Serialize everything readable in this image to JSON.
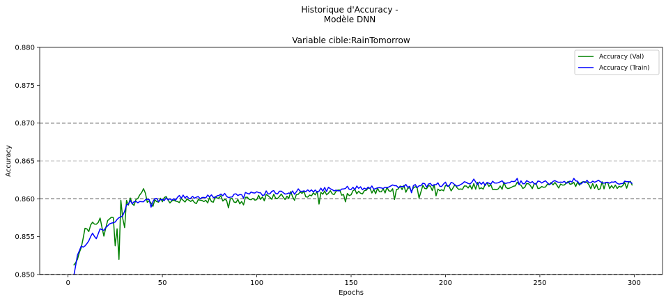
{
  "chart_data": {
    "type": "line",
    "suptitle_lines": [
      "Historique d'Accuracy -",
      "Modèle DNN"
    ],
    "title": "Variable cible:RainTomorrow",
    "xlabel": "Epochs",
    "ylabel": "Accuracy",
    "xlim": [
      -15,
      315
    ],
    "ylim": [
      0.85,
      0.88
    ],
    "xticks": [
      0,
      50,
      100,
      150,
      200,
      250,
      300
    ],
    "yticks": [
      0.85,
      0.855,
      0.86,
      0.865,
      0.87,
      0.875,
      0.88
    ],
    "ytick_labels": [
      "0.850",
      "0.855",
      "0.860",
      "0.865",
      "0.870",
      "0.875",
      "0.880"
    ],
    "reference_lines": [
      {
        "y": 0.85,
        "style": "dashed",
        "color": "#000000"
      },
      {
        "y": 0.86,
        "style": "dashed",
        "color": "#808080"
      },
      {
        "y": 0.865,
        "style": "dashed",
        "color": "#c8c8c8"
      },
      {
        "y": 0.87,
        "style": "dashed",
        "color": "#808080"
      }
    ],
    "legend_position": "top-right",
    "grid": false,
    "anchors": {
      "val": [
        [
          3,
          0.8512
        ],
        [
          5,
          0.852
        ],
        [
          7,
          0.8535
        ],
        [
          9,
          0.856
        ],
        [
          11,
          0.8558
        ],
        [
          13,
          0.857
        ],
        [
          15,
          0.8565
        ],
        [
          17,
          0.8575
        ],
        [
          19,
          0.8552
        ],
        [
          21,
          0.857
        ],
        [
          23,
          0.8575
        ],
        [
          25,
          0.8578
        ],
        [
          26,
          0.856
        ],
        [
          27,
          0.8552
        ],
        [
          28,
          0.8598
        ],
        [
          29,
          0.8575
        ],
        [
          31,
          0.8594
        ],
        [
          33,
          0.8598
        ],
        [
          35,
          0.8596
        ],
        [
          37,
          0.8598
        ],
        [
          39,
          0.8605
        ],
        [
          40,
          0.861
        ],
        [
          42,
          0.86
        ],
        [
          45,
          0.8597
        ],
        [
          50,
          0.8598
        ],
        [
          60,
          0.8597
        ],
        [
          70,
          0.8598
        ],
        [
          80,
          0.86
        ],
        [
          90,
          0.8598
        ],
        [
          100,
          0.8601
        ],
        [
          110,
          0.8603
        ],
        [
          120,
          0.8605
        ],
        [
          130,
          0.8605
        ],
        [
          140,
          0.8607
        ],
        [
          150,
          0.8609
        ],
        [
          160,
          0.861
        ],
        [
          170,
          0.8612
        ],
        [
          180,
          0.8613
        ],
        [
          190,
          0.8614
        ],
        [
          200,
          0.8615
        ],
        [
          210,
          0.8616
        ],
        [
          220,
          0.8617
        ],
        [
          230,
          0.8617
        ],
        [
          240,
          0.8617
        ],
        [
          250,
          0.8618
        ],
        [
          260,
          0.8618
        ],
        [
          270,
          0.8618
        ],
        [
          280,
          0.8618
        ],
        [
          290,
          0.8618
        ],
        [
          299,
          0.8619
        ]
      ],
      "train": [
        [
          3,
          0.8497
        ],
        [
          5,
          0.8525
        ],
        [
          7,
          0.8537
        ],
        [
          9,
          0.8537
        ],
        [
          11,
          0.8545
        ],
        [
          13,
          0.8555
        ],
        [
          15,
          0.8547
        ],
        [
          17,
          0.856
        ],
        [
          19,
          0.8558
        ],
        [
          21,
          0.8565
        ],
        [
          23,
          0.8568
        ],
        [
          25,
          0.857
        ],
        [
          27,
          0.8575
        ],
        [
          29,
          0.8578
        ],
        [
          31,
          0.859
        ],
        [
          33,
          0.8596
        ],
        [
          35,
          0.8594
        ],
        [
          38,
          0.8595
        ],
        [
          40,
          0.8598
        ],
        [
          45,
          0.8598
        ],
        [
          50,
          0.8598
        ],
        [
          60,
          0.8602
        ],
        [
          70,
          0.8603
        ],
        [
          80,
          0.8604
        ],
        [
          90,
          0.8605
        ],
        [
          100,
          0.8607
        ],
        [
          110,
          0.8608
        ],
        [
          120,
          0.861
        ],
        [
          130,
          0.8611
        ],
        [
          140,
          0.8613
        ],
        [
          150,
          0.8614
        ],
        [
          160,
          0.8615
        ],
        [
          170,
          0.8616
        ],
        [
          180,
          0.8617
        ],
        [
          190,
          0.8618
        ],
        [
          200,
          0.8619
        ],
        [
          210,
          0.862
        ],
        [
          220,
          0.862
        ],
        [
          230,
          0.8621
        ],
        [
          240,
          0.8621
        ],
        [
          250,
          0.8621
        ],
        [
          260,
          0.8622
        ],
        [
          270,
          0.8622
        ],
        [
          280,
          0.8622
        ],
        [
          290,
          0.8622
        ],
        [
          299,
          0.8622
        ]
      ]
    },
    "noise_amplitude": {
      "val": 0.0005,
      "train": 0.0003
    },
    "dips": {
      "val": [
        [
          25,
          0.8538
        ],
        [
          27,
          0.852
        ],
        [
          30,
          0.8562
        ],
        [
          45,
          0.859
        ],
        [
          52,
          0.8603
        ],
        [
          57,
          0.8597
        ],
        [
          85,
          0.8588
        ],
        [
          93,
          0.8592
        ],
        [
          120,
          0.8598
        ],
        [
          133,
          0.8593
        ],
        [
          147,
          0.8596
        ],
        [
          173,
          0.8599
        ],
        [
          186,
          0.8601
        ],
        [
          195,
          0.8604
        ],
        [
          222,
          0.8621
        ],
        [
          281,
          0.8612
        ],
        [
          296,
          0.8614
        ]
      ],
      "train": [
        [
          44,
          0.8589
        ],
        [
          93,
          0.8601
        ],
        [
          120,
          0.8606
        ],
        [
          156,
          0.8612
        ],
        [
          182,
          0.8608
        ],
        [
          215,
          0.8626
        ],
        [
          238,
          0.8627
        ],
        [
          258,
          0.8624
        ],
        [
          268,
          0.8627
        ]
      ]
    },
    "series": [
      {
        "key": "val",
        "name": "Accuracy (Val)",
        "color": "#008000"
      },
      {
        "key": "train",
        "name": "Accuracy (Train)",
        "color": "#0000ff"
      }
    ]
  }
}
